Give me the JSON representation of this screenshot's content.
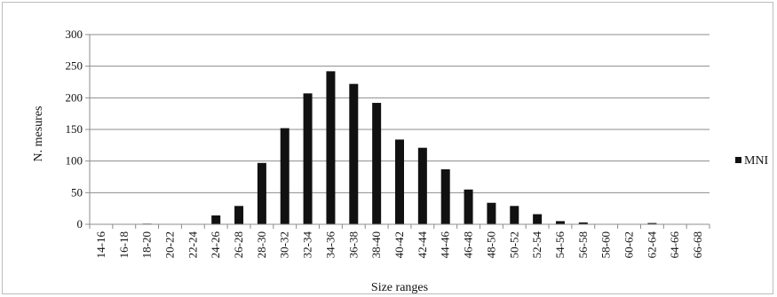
{
  "chart_data": {
    "type": "bar",
    "title": "",
    "xlabel": "Size ranges",
    "ylabel": "N. mesures",
    "ylim": [
      0,
      300
    ],
    "yticks": [
      0,
      50,
      100,
      150,
      200,
      250,
      300
    ],
    "grid": true,
    "legend_position": "right",
    "categories": [
      "14-16",
      "16-18",
      "18-20",
      "20-22",
      "22-24",
      "24-26",
      "26-28",
      "28-30",
      "30-32",
      "32-34",
      "34-36",
      "36-38",
      "38-40",
      "40-42",
      "42-44",
      "44-46",
      "46-48",
      "48-50",
      "50-52",
      "52-54",
      "54-56",
      "56-58",
      "58-60",
      "60-62",
      "62-64",
      "64-66",
      "66-68"
    ],
    "series": [
      {
        "name": "MNI",
        "color": "#111111",
        "values": [
          0,
          0,
          1,
          0,
          0,
          14,
          29,
          97,
          152,
          207,
          242,
          222,
          192,
          134,
          121,
          87,
          55,
          34,
          29,
          16,
          5,
          3,
          0,
          0,
          2,
          0,
          0
        ]
      }
    ]
  }
}
